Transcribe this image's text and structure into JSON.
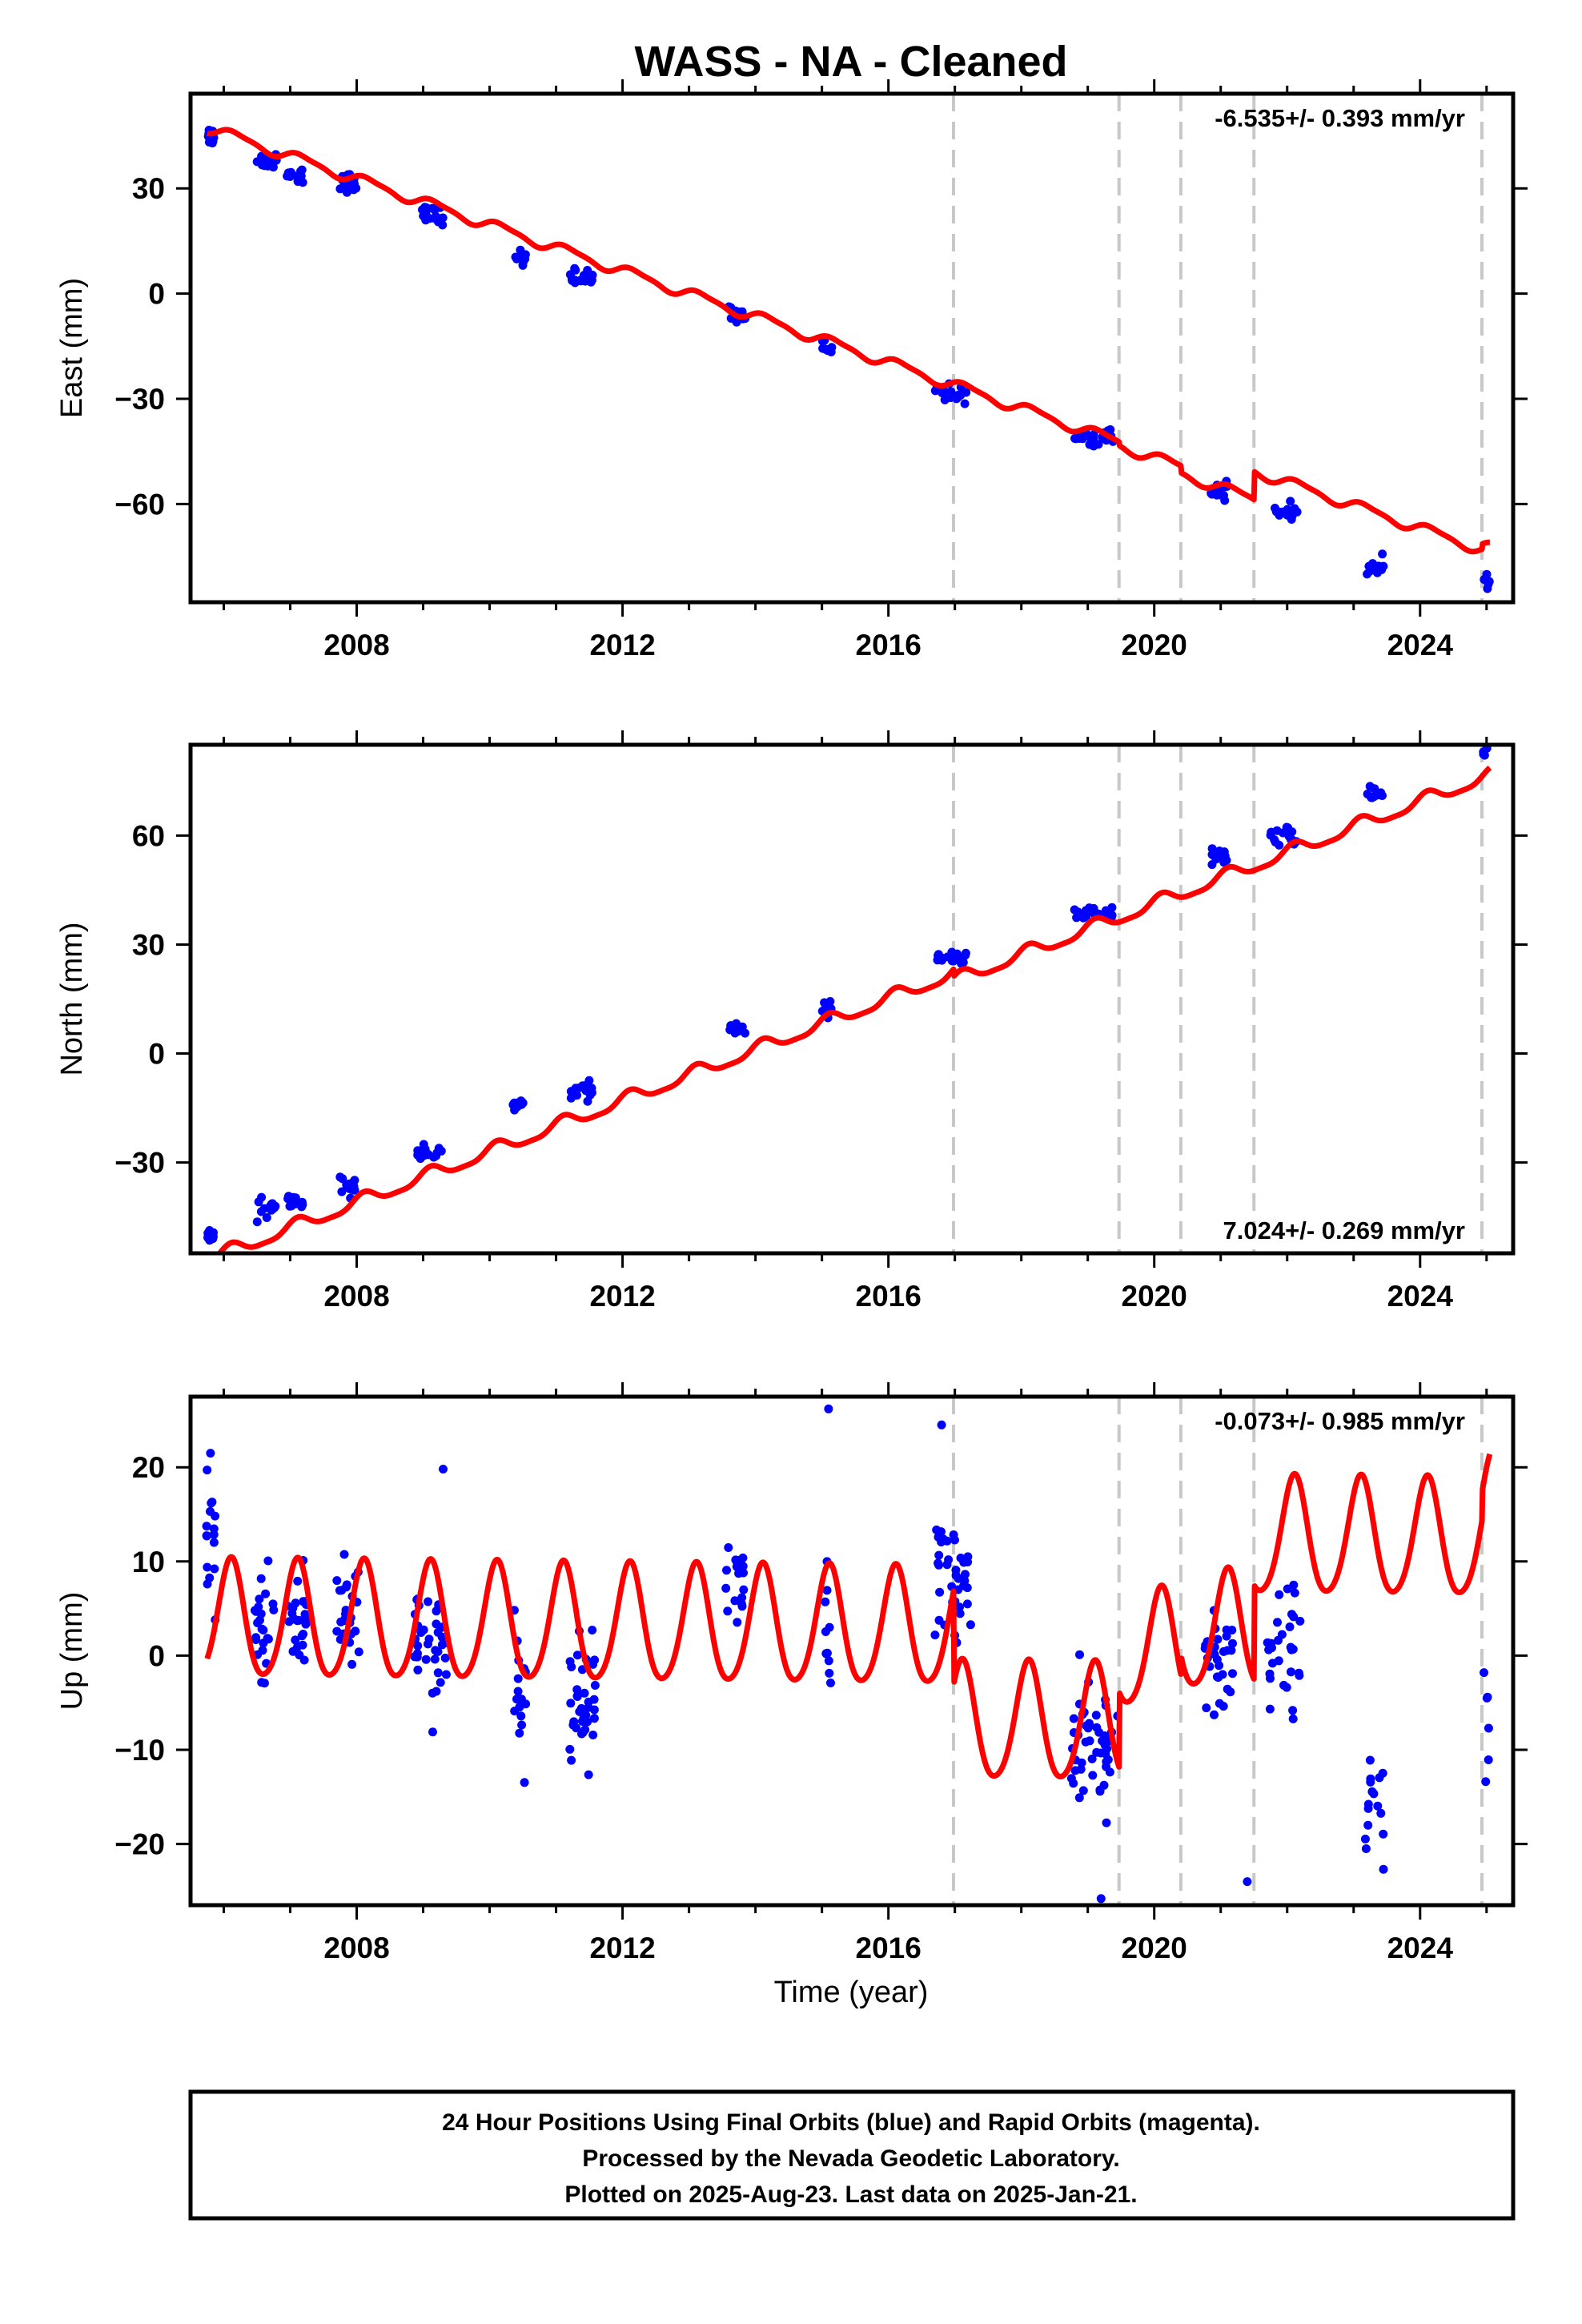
{
  "chart_data": {
    "title": "WASS  - NA - Cleaned",
    "type": "scatter",
    "x_range": [
      2005.5,
      2025.4
    ],
    "x_ticks": [
      2008,
      2012,
      2016,
      2020,
      2024
    ],
    "x_tick_labels": [
      "2008",
      "2012",
      "2016",
      "2020",
      "2024"
    ],
    "xlabel": "Time (year)",
    "step_dates": [
      2016.98,
      2019.47,
      2020.4,
      2021.5,
      2024.93
    ],
    "point_color": "#0000ff",
    "model_color": "#ff0000",
    "step_color": "#c8c8c8",
    "panels": [
      {
        "ylabel": "East (mm)",
        "ylim": [
          -88,
          57
        ],
        "yticks": [
          -60,
          -30,
          0,
          30
        ],
        "ytick_labels": [
          "−60",
          "−30",
          "0",
          "30"
        ],
        "rate": "-6.535+/- 0.393 mm/yr",
        "rate_position": "top-right",
        "model": {
          "rate": -6.535,
          "offset": 0.0,
          "ref_year": 2013.0,
          "annual_amp": 1.4,
          "annual_phase": 0.4,
          "semi_amp": 0.4,
          "semi_phase": 1.2,
          "steps": [
            [
              2016.98,
              0.0
            ],
            [
              2019.47,
              -1.0
            ],
            [
              2020.4,
              -2.0
            ],
            [
              2021.5,
              8.0
            ],
            [
              2024.93,
              1.5
            ]
          ]
        },
        "point_scatter": 1.3,
        "clusters": [
          {
            "x": [
              2005.75,
              2005.85
            ],
            "y": 45.0,
            "n": 12
          },
          {
            "x": [
              2006.5,
              2006.8
            ],
            "y": 38.0,
            "n": 14
          },
          {
            "x": [
              2006.95,
              2007.2
            ],
            "y": 34.0,
            "n": 14
          },
          {
            "x": [
              2007.75,
              2008.05
            ],
            "y": 32.0,
            "n": 16
          },
          {
            "x": [
              2008.9,
              2009.3
            ],
            "y": 22.5,
            "n": 20
          },
          {
            "x": [
              2010.35,
              2010.55
            ],
            "y": 10.0,
            "n": 10
          },
          {
            "x": [
              2011.2,
              2011.55
            ],
            "y": 5.0,
            "n": 18
          },
          {
            "x": [
              2013.6,
              2013.85
            ],
            "y": -6.5,
            "n": 10
          },
          {
            "x": [
              2015.0,
              2015.15
            ],
            "y": -15.5,
            "n": 8
          },
          {
            "x": [
              2016.7,
              2017.2
            ],
            "y": -28.5,
            "n": 18
          },
          {
            "x": [
              2018.8,
              2019.4
            ],
            "y": -41.0,
            "n": 22
          },
          {
            "x": [
              2020.85,
              2021.1
            ],
            "y": -56.0,
            "n": 16
          },
          {
            "x": [
              2021.75,
              2022.15
            ],
            "y": -62.0,
            "n": 16
          },
          {
            "x": [
              2023.2,
              2023.45
            ],
            "y": -78.0,
            "n": 12
          },
          {
            "x": [
              2024.95,
              2025.05
            ],
            "y": -82.5,
            "n": 5
          }
        ]
      },
      {
        "ylabel": "North (mm)",
        "ylim": [
          -55,
          85
        ],
        "yticks": [
          -30,
          0,
          30,
          60
        ],
        "ytick_labels": [
          "−30",
          "0",
          "30",
          "60"
        ],
        "rate": "7.024+/- 0.269 mm/yr",
        "rate_position": "bottom-right",
        "model": {
          "rate": 7.024,
          "offset": -6.0,
          "ref_year": 2013.0,
          "annual_amp": 1.8,
          "annual_phase": 0.9,
          "semi_amp": 0.5,
          "semi_phase": 0.2,
          "steps": [
            [
              2016.98,
              -2.0
            ],
            [
              2019.47,
              0.0
            ],
            [
              2020.4,
              0.0
            ],
            [
              2021.5,
              0.0
            ],
            [
              2024.93,
              0.0
            ]
          ]
        },
        "point_scatter": 1.1,
        "clusters": [
          {
            "x": [
              2005.75,
              2005.85
            ],
            "y": -49.5,
            "n": 10
          },
          {
            "x": [
              2006.5,
              2006.8
            ],
            "y": -42.5,
            "n": 14
          },
          {
            "x": [
              2006.95,
              2007.2
            ],
            "y": -40.5,
            "n": 14
          },
          {
            "x": [
              2007.75,
              2008.05
            ],
            "y": -37.0,
            "n": 16
          },
          {
            "x": [
              2008.9,
              2009.3
            ],
            "y": -27.5,
            "n": 20
          },
          {
            "x": [
              2010.35,
              2010.55
            ],
            "y": -14.5,
            "n": 10
          },
          {
            "x": [
              2011.2,
              2011.55
            ],
            "y": -10.5,
            "n": 18
          },
          {
            "x": [
              2013.6,
              2013.85
            ],
            "y": 7.0,
            "n": 10
          },
          {
            "x": [
              2015.0,
              2015.15
            ],
            "y": 13.0,
            "n": 8
          },
          {
            "x": [
              2016.7,
              2017.2
            ],
            "y": 26.0,
            "n": 18
          },
          {
            "x": [
              2018.8,
              2019.4
            ],
            "y": 38.5,
            "n": 22
          },
          {
            "x": [
              2020.85,
              2021.1
            ],
            "y": 54.0,
            "n": 14
          },
          {
            "x": [
              2021.75,
              2022.15
            ],
            "y": 60.0,
            "n": 16
          },
          {
            "x": [
              2023.2,
              2023.45
            ],
            "y": 71.0,
            "n": 12
          },
          {
            "x": [
              2024.95,
              2025.05
            ],
            "y": 82.0,
            "n": 5
          }
        ]
      },
      {
        "ylabel": "Up (mm)",
        "ylim": [
          -26.5,
          27.5
        ],
        "yticks": [
          -20,
          -10,
          0,
          10,
          20
        ],
        "ytick_labels": [
          "−20",
          "−10",
          "0",
          "10",
          "20"
        ],
        "rate": "-0.073+/- 0.985 mm/yr",
        "rate_position": "top-right",
        "model": {
          "rate": -0.073,
          "offset": 3.0,
          "ref_year": 2013.0,
          "annual_amp": 6.2,
          "annual_phase": 0.9,
          "semi_amp": 0.8,
          "semi_phase": 0.0,
          "steps": [
            [
              2016.98,
              -10.0
            ],
            [
              2019.47,
              8.0
            ],
            [
              2020.4,
              2.0
            ],
            [
              2021.5,
              10.0
            ],
            [
              2024.93,
              3.0
            ]
          ]
        },
        "point_scatter": 3.2,
        "clusters": [
          {
            "x": [
              2005.72,
              2005.88
            ],
            "y": 12.0,
            "n": 16
          },
          {
            "x": [
              2006.45,
              2006.75
            ],
            "y": 3.0,
            "n": 24
          },
          {
            "x": [
              2006.95,
              2007.3
            ],
            "y": 4.0,
            "n": 28
          },
          {
            "x": [
              2007.7,
              2008.05
            ],
            "y": 4.0,
            "n": 26
          },
          {
            "x": [
              2008.85,
              2009.35
            ],
            "y": 1.0,
            "n": 40
          },
          {
            "x": [
              2010.35,
              2010.55
            ],
            "y": -5.0,
            "n": 16
          },
          {
            "x": [
              2011.2,
              2011.6
            ],
            "y": -5.0,
            "n": 36
          },
          {
            "x": [
              2013.55,
              2013.85
            ],
            "y": 9.0,
            "n": 18
          },
          {
            "x": [
              2015.0,
              2015.15
            ],
            "y": 2.0,
            "n": 10
          },
          {
            "x": [
              2016.7,
              2017.25
            ],
            "y": 8.0,
            "n": 40
          },
          {
            "x": [
              2018.75,
              2019.45
            ],
            "y": -10.0,
            "n": 50
          },
          {
            "x": [
              2020.75,
              2021.2
            ],
            "y": 0.0,
            "n": 30
          },
          {
            "x": [
              2021.7,
              2022.2
            ],
            "y": 0.0,
            "n": 30
          },
          {
            "x": [
              2023.15,
              2023.45
            ],
            "y": -16.0,
            "n": 16
          },
          {
            "x": [
              2024.93,
              2025.05
            ],
            "y": -7.0,
            "n": 6
          }
        ],
        "outliers": [
          [
            2015.1,
            26.2
          ],
          [
            2016.8,
            24.5
          ],
          [
            2009.3,
            19.8
          ],
          [
            2005.8,
            21.5
          ],
          [
            2019.2,
            -25.8
          ],
          [
            2021.4,
            -24.0
          ]
        ]
      }
    ]
  },
  "footer": {
    "line1": "24 Hour Positions Using Final Orbits (blue) and Rapid Orbits (magenta).",
    "line2": "Processed by the Nevada Geodetic Laboratory.",
    "line3": "Plotted on 2025-Aug-23. Last data on 2025-Jan-21."
  }
}
